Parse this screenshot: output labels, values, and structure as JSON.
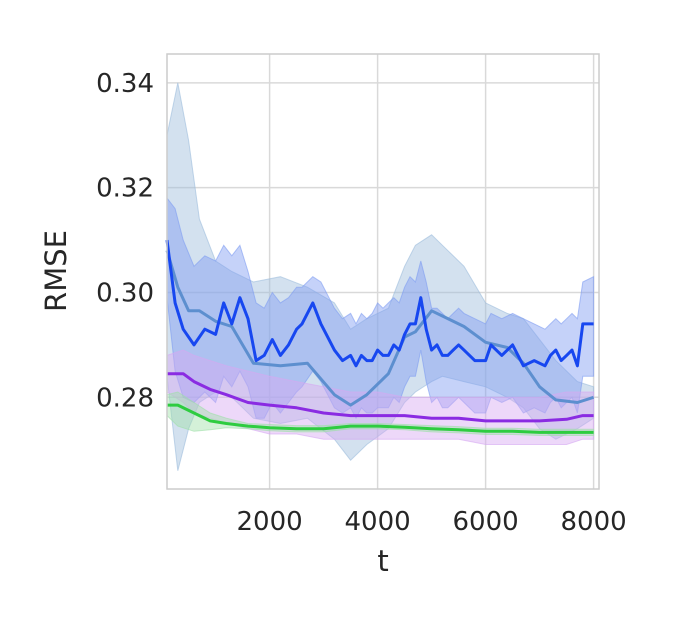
{
  "chart_data": {
    "type": "line",
    "title": "",
    "xlabel": "t",
    "ylabel": "RMSE",
    "xlim": [
      100,
      8100
    ],
    "ylim": [
      0.2625,
      0.3455
    ],
    "xticks": [
      2000,
      4000,
      6000,
      8000
    ],
    "xtick_labels": [
      "2000",
      "4000",
      "6000",
      "8000"
    ],
    "yticks": [
      0.28,
      0.3,
      0.32,
      0.34
    ],
    "ytick_labels": [
      "0.28",
      "0.30",
      "0.32",
      "0.34"
    ],
    "grid": true,
    "legend": "none",
    "series": [
      {
        "color": "#5d8fcf",
        "band_color": "#9dbcdc",
        "x": [
          100,
          300,
          500,
          700,
          1000,
          1300,
          1700,
          2200,
          2700,
          3200,
          3500,
          3800,
          4200,
          4500,
          4700,
          5000,
          5200,
          5600,
          6000,
          6400,
          6700,
          7000,
          7300,
          7700,
          8000
        ],
        "y": [
          0.308,
          0.301,
          0.2965,
          0.2965,
          0.2945,
          0.2935,
          0.2865,
          0.286,
          0.2865,
          0.2805,
          0.2785,
          0.2805,
          0.2845,
          0.2915,
          0.2925,
          0.2965,
          0.2955,
          0.2935,
          0.2905,
          0.2895,
          0.2865,
          0.282,
          0.2795,
          0.279,
          0.28
        ],
        "upper": [
          0.33,
          0.34,
          0.329,
          0.314,
          0.306,
          0.304,
          0.302,
          0.303,
          0.301,
          0.298,
          0.293,
          0.295,
          0.297,
          0.305,
          0.309,
          0.311,
          0.309,
          0.305,
          0.298,
          0.296,
          0.295,
          0.291,
          0.287,
          0.283,
          0.282
        ],
        "lower": [
          0.284,
          0.266,
          0.274,
          0.279,
          0.281,
          0.28,
          0.276,
          0.275,
          0.276,
          0.272,
          0.268,
          0.271,
          0.274,
          0.279,
          0.281,
          0.283,
          0.284,
          0.283,
          0.282,
          0.28,
          0.278,
          0.274,
          0.272,
          0.274,
          0.276
        ]
      },
      {
        "color": "#1747f0",
        "band_color": "#7f9cf2",
        "x": [
          100,
          250,
          400,
          600,
          800,
          1000,
          1150,
          1300,
          1450,
          1600,
          1750,
          1900,
          2050,
          2200,
          2350,
          2500,
          2600,
          2800,
          2950,
          3100,
          3200,
          3350,
          3500,
          3600,
          3700,
          3800,
          3900,
          4000,
          4100,
          4200,
          4300,
          4400,
          4500,
          4600,
          4700,
          4800,
          4900,
          5000,
          5100,
          5200,
          5300,
          5400,
          5500,
          5600,
          5800,
          6000,
          6100,
          6300,
          6500,
          6700,
          6900,
          7100,
          7200,
          7300,
          7400,
          7500,
          7600,
          7700,
          7800,
          8000
        ],
        "y": [
          0.31,
          0.298,
          0.293,
          0.29,
          0.293,
          0.292,
          0.298,
          0.294,
          0.299,
          0.295,
          0.287,
          0.288,
          0.291,
          0.288,
          0.29,
          0.293,
          0.294,
          0.298,
          0.294,
          0.291,
          0.289,
          0.287,
          0.288,
          0.286,
          0.288,
          0.287,
          0.287,
          0.289,
          0.288,
          0.288,
          0.29,
          0.289,
          0.292,
          0.294,
          0.294,
          0.299,
          0.293,
          0.289,
          0.29,
          0.288,
          0.288,
          0.289,
          0.29,
          0.289,
          0.287,
          0.287,
          0.29,
          0.288,
          0.29,
          0.286,
          0.287,
          0.286,
          0.288,
          0.289,
          0.287,
          0.288,
          0.289,
          0.286,
          0.294,
          0.294
        ],
        "upper": [
          0.318,
          0.316,
          0.31,
          0.305,
          0.307,
          0.306,
          0.309,
          0.307,
          0.309,
          0.304,
          0.298,
          0.297,
          0.3,
          0.298,
          0.299,
          0.301,
          0.301,
          0.303,
          0.302,
          0.299,
          0.297,
          0.295,
          0.296,
          0.294,
          0.296,
          0.295,
          0.296,
          0.298,
          0.297,
          0.298,
          0.299,
          0.298,
          0.301,
          0.303,
          0.302,
          0.306,
          0.302,
          0.297,
          0.297,
          0.296,
          0.295,
          0.296,
          0.297,
          0.296,
          0.295,
          0.294,
          0.296,
          0.295,
          0.296,
          0.295,
          0.294,
          0.293,
          0.294,
          0.295,
          0.294,
          0.295,
          0.296,
          0.295,
          0.302,
          0.303
        ],
        "lower": [
          0.299,
          0.285,
          0.28,
          0.279,
          0.281,
          0.279,
          0.284,
          0.282,
          0.285,
          0.282,
          0.276,
          0.276,
          0.279,
          0.277,
          0.279,
          0.281,
          0.282,
          0.285,
          0.283,
          0.28,
          0.278,
          0.277,
          0.278,
          0.276,
          0.278,
          0.277,
          0.277,
          0.278,
          0.278,
          0.278,
          0.28,
          0.279,
          0.282,
          0.284,
          0.284,
          0.289,
          0.283,
          0.279,
          0.28,
          0.278,
          0.278,
          0.279,
          0.28,
          0.279,
          0.277,
          0.277,
          0.28,
          0.279,
          0.28,
          0.277,
          0.278,
          0.277,
          0.279,
          0.28,
          0.278,
          0.279,
          0.28,
          0.277,
          0.284,
          0.284
        ]
      },
      {
        "color": "#8a2be2",
        "band_color": "#d6a8f2",
        "x": [
          100,
          400,
          600,
          900,
          1200,
          1600,
          2000,
          2500,
          3000,
          3500,
          4000,
          4500,
          5000,
          5500,
          6000,
          6500,
          7000,
          7500,
          7800,
          8000
        ],
        "y": [
          0.2845,
          0.2845,
          0.283,
          0.2815,
          0.2805,
          0.279,
          0.2785,
          0.278,
          0.277,
          0.2765,
          0.2765,
          0.2765,
          0.276,
          0.276,
          0.2755,
          0.2755,
          0.2755,
          0.2758,
          0.2765,
          0.2765
        ],
        "upper": [
          0.288,
          0.289,
          0.288,
          0.287,
          0.286,
          0.285,
          0.284,
          0.283,
          0.282,
          0.281,
          0.281,
          0.28,
          0.28,
          0.28,
          0.28,
          0.28,
          0.28,
          0.281,
          0.281,
          0.281
        ],
        "lower": [
          0.281,
          0.279,
          0.277,
          0.276,
          0.275,
          0.274,
          0.273,
          0.273,
          0.272,
          0.272,
          0.272,
          0.272,
          0.272,
          0.272,
          0.271,
          0.271,
          0.271,
          0.271,
          0.272,
          0.272
        ]
      },
      {
        "color": "#2ecc40",
        "band_color": "#9fe0a8",
        "x": [
          100,
          300,
          600,
          900,
          1200,
          1600,
          2000,
          2500,
          3000,
          3500,
          4000,
          4500,
          5000,
          5500,
          6000,
          6500,
          7000,
          7500,
          8000
        ],
        "y": [
          0.2785,
          0.2785,
          0.277,
          0.2755,
          0.275,
          0.2745,
          0.2742,
          0.274,
          0.274,
          0.2745,
          0.2745,
          0.2743,
          0.274,
          0.2738,
          0.2735,
          0.2735,
          0.2733,
          0.2733,
          0.2733
        ],
        "upper": [
          0.2805,
          0.281,
          0.279,
          0.277,
          0.276,
          0.275,
          0.2748,
          0.2746,
          0.2746,
          0.275,
          0.275,
          0.2748,
          0.2746,
          0.2744,
          0.2741,
          0.2741,
          0.2739,
          0.2739,
          0.2739
        ],
        "lower": [
          0.2765,
          0.2745,
          0.2735,
          0.2738,
          0.2742,
          0.274,
          0.2736,
          0.2734,
          0.2734,
          0.274,
          0.274,
          0.2738,
          0.2734,
          0.2732,
          0.2729,
          0.2729,
          0.2727,
          0.2727,
          0.2727
        ]
      }
    ]
  }
}
